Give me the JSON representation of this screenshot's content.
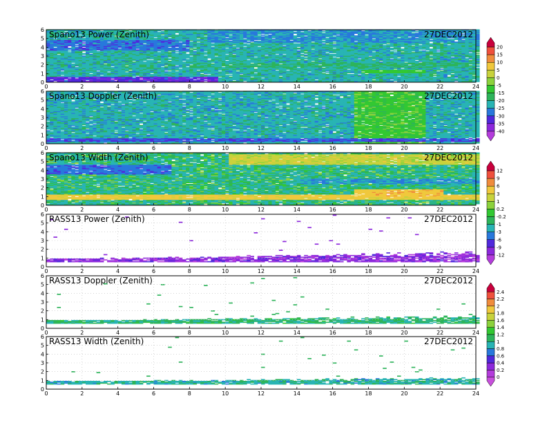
{
  "chart_data": [
    {
      "type": "heatmap",
      "title": "Spano13 Power (Zenith)",
      "date": "27DEC2012",
      "xlim": [
        0,
        24
      ],
      "ylim": [
        0,
        6
      ],
      "xticks": [
        0,
        2,
        4,
        6,
        8,
        10,
        12,
        14,
        16,
        18,
        20,
        22,
        24
      ],
      "yticks": [
        0,
        1,
        2,
        3,
        4,
        5,
        6
      ],
      "colorbar": "power",
      "fill": "dense",
      "base_level": -22,
      "features": [
        {
          "y": [
            0.05,
            0.6
          ],
          "x": [
            0,
            9.5
          ],
          "level": -33
        },
        {
          "y": [
            3.6,
            4.8
          ],
          "x": [
            0,
            8
          ],
          "level": -28
        },
        {
          "y": [
            1.6,
            2.2
          ],
          "x": [
            8,
            24
          ],
          "level": -19
        },
        {
          "y": [
            4.5,
            6
          ],
          "x": [
            9,
            24
          ],
          "level": -25
        },
        {
          "y": [
            1.0,
            1.4
          ],
          "x": [
            17.5,
            21
          ],
          "level": -12
        }
      ]
    },
    {
      "type": "heatmap",
      "title": "Spano13 Doppler (Zenith)",
      "date": "27DEC2012",
      "xlim": [
        0,
        24
      ],
      "ylim": [
        0,
        6
      ],
      "xticks": [
        0,
        2,
        4,
        6,
        8,
        10,
        12,
        14,
        16,
        18,
        20,
        22,
        24
      ],
      "yticks": [
        0,
        1,
        2,
        3,
        4,
        5,
        6
      ],
      "colorbar": "doppler",
      "fill": "dense",
      "base_level": 0.9,
      "features": [
        {
          "y": [
            0,
            6
          ],
          "x": [
            17,
            21
          ],
          "level": 1.3
        },
        {
          "y": [
            0.2,
            0.6
          ],
          "x": [
            0,
            24
          ],
          "level": 0.6
        }
      ]
    },
    {
      "type": "heatmap",
      "title": "Spano13 Width (Zenith)",
      "date": "27DEC2012",
      "xlim": [
        0,
        24
      ],
      "ylim": [
        0,
        6
      ],
      "xticks": [
        0,
        2,
        4,
        6,
        8,
        10,
        12,
        14,
        16,
        18,
        20,
        22,
        24
      ],
      "yticks": [
        0,
        1,
        2,
        3,
        4,
        5,
        6
      ],
      "colorbar": "width",
      "fill": "dense",
      "base_level": -1,
      "features": [
        {
          "y": [
            0.6,
            1.2
          ],
          "x": [
            0,
            24
          ],
          "level": 4
        },
        {
          "y": [
            3.5,
            4.6
          ],
          "x": [
            0,
            7
          ],
          "level": -5
        },
        {
          "y": [
            4.6,
            5.8
          ],
          "x": [
            10,
            24
          ],
          "level": 2
        },
        {
          "y": [
            2.4,
            3.0
          ],
          "x": [
            14,
            24
          ],
          "level": -3
        },
        {
          "y": [
            1.0,
            1.8
          ],
          "x": [
            17,
            22
          ],
          "level": 5
        }
      ]
    },
    {
      "type": "heatmap",
      "title": "RASS13 Power (Zenith)",
      "date": "27DEC2012",
      "xlim": [
        0,
        24
      ],
      "ylim": [
        0,
        6
      ],
      "xticks": [
        0,
        2,
        4,
        6,
        8,
        10,
        12,
        14,
        16,
        18,
        20,
        22,
        24
      ],
      "yticks": [
        0,
        1,
        2,
        3,
        4,
        5,
        6
      ],
      "colorbar": "power",
      "fill": "band",
      "base_level": -38,
      "band": [
        0.5,
        0.85
      ],
      "band_grow": 0.9,
      "scatter_level": -36
    },
    {
      "type": "heatmap",
      "title": "RASS13 Doppler (Zenith)",
      "date": "27DEC2012",
      "xlim": [
        0,
        24
      ],
      "ylim": [
        0,
        6
      ],
      "xticks": [
        0,
        2,
        4,
        6,
        8,
        10,
        12,
        14,
        16,
        18,
        20,
        22,
        24
      ],
      "yticks": [
        0,
        1,
        2,
        3,
        4,
        5,
        6
      ],
      "colorbar": "doppler",
      "fill": "band",
      "base_level": 1.05,
      "band": [
        0.5,
        0.85
      ],
      "band_grow": 0.6,
      "scatter_level": 1.1
    },
    {
      "type": "heatmap",
      "title": "RASS13 Width (Zenith)",
      "date": "27DEC2012",
      "xlim": [
        0,
        24
      ],
      "ylim": [
        0,
        6
      ],
      "xticks": [
        0,
        2,
        4,
        6,
        8,
        10,
        12,
        14,
        16,
        18,
        20,
        22,
        24
      ],
      "yticks": [
        0,
        1,
        2,
        3,
        4,
        5,
        6
      ],
      "colorbar": "doppler",
      "fill": "band",
      "base_level": 0.95,
      "band": [
        0.5,
        0.85
      ],
      "band_grow": 0.5,
      "scatter_level": 1.0
    }
  ],
  "colorbars": {
    "power": {
      "ticks": [
        "20",
        "15",
        "10",
        "5",
        "0",
        "-5",
        "-15",
        "-20",
        "-25",
        "-30",
        "-35",
        "-40"
      ],
      "levels": [
        20,
        15,
        10,
        5,
        0,
        -5,
        -15,
        -20,
        -25,
        -30,
        -35,
        -40
      ],
      "colors": [
        "#c8003c",
        "#f0503c",
        "#f08c3c",
        "#f0c83c",
        "#c8d23c",
        "#8cd23c",
        "#32c832",
        "#2db45a",
        "#28b4b4",
        "#2878dc",
        "#5028dc",
        "#8c28dc",
        "#b43cdc"
      ]
    },
    "width": {
      "ticks": [
        "12",
        "9",
        "6",
        "3",
        "1",
        "0.2",
        "-0.2",
        "-1",
        "-3",
        "-6",
        "-9",
        "-12"
      ],
      "levels": [
        12,
        9,
        6,
        3,
        1,
        0.2,
        -0.2,
        -1,
        -3,
        -6,
        -9,
        -12
      ],
      "colors": [
        "#c8003c",
        "#f0503c",
        "#f08c3c",
        "#f0c83c",
        "#c8d23c",
        "#8cd23c",
        "#32c832",
        "#2db45a",
        "#28b4b4",
        "#2878dc",
        "#5028dc",
        "#8c28dc",
        "#b43cdc"
      ]
    },
    "doppler": {
      "ticks": [
        "2.4",
        "2.2",
        "2",
        "1.8",
        "1.6",
        "1.4",
        "1.2",
        "1",
        "0.8",
        "0.6",
        "0.4",
        "0.2",
        "0"
      ],
      "levels": [
        2.4,
        2.2,
        2,
        1.8,
        1.6,
        1.4,
        1.2,
        1,
        0.8,
        0.6,
        0.4,
        0.2,
        0
      ],
      "colors": [
        "#c8003c",
        "#f0503c",
        "#f08c3c",
        "#f0c83c",
        "#c8d23c",
        "#8cd23c",
        "#32c832",
        "#2db45a",
        "#28b4b4",
        "#2878dc",
        "#5028dc",
        "#8c28dc",
        "#b43cdc",
        "#c850dc"
      ]
    }
  }
}
